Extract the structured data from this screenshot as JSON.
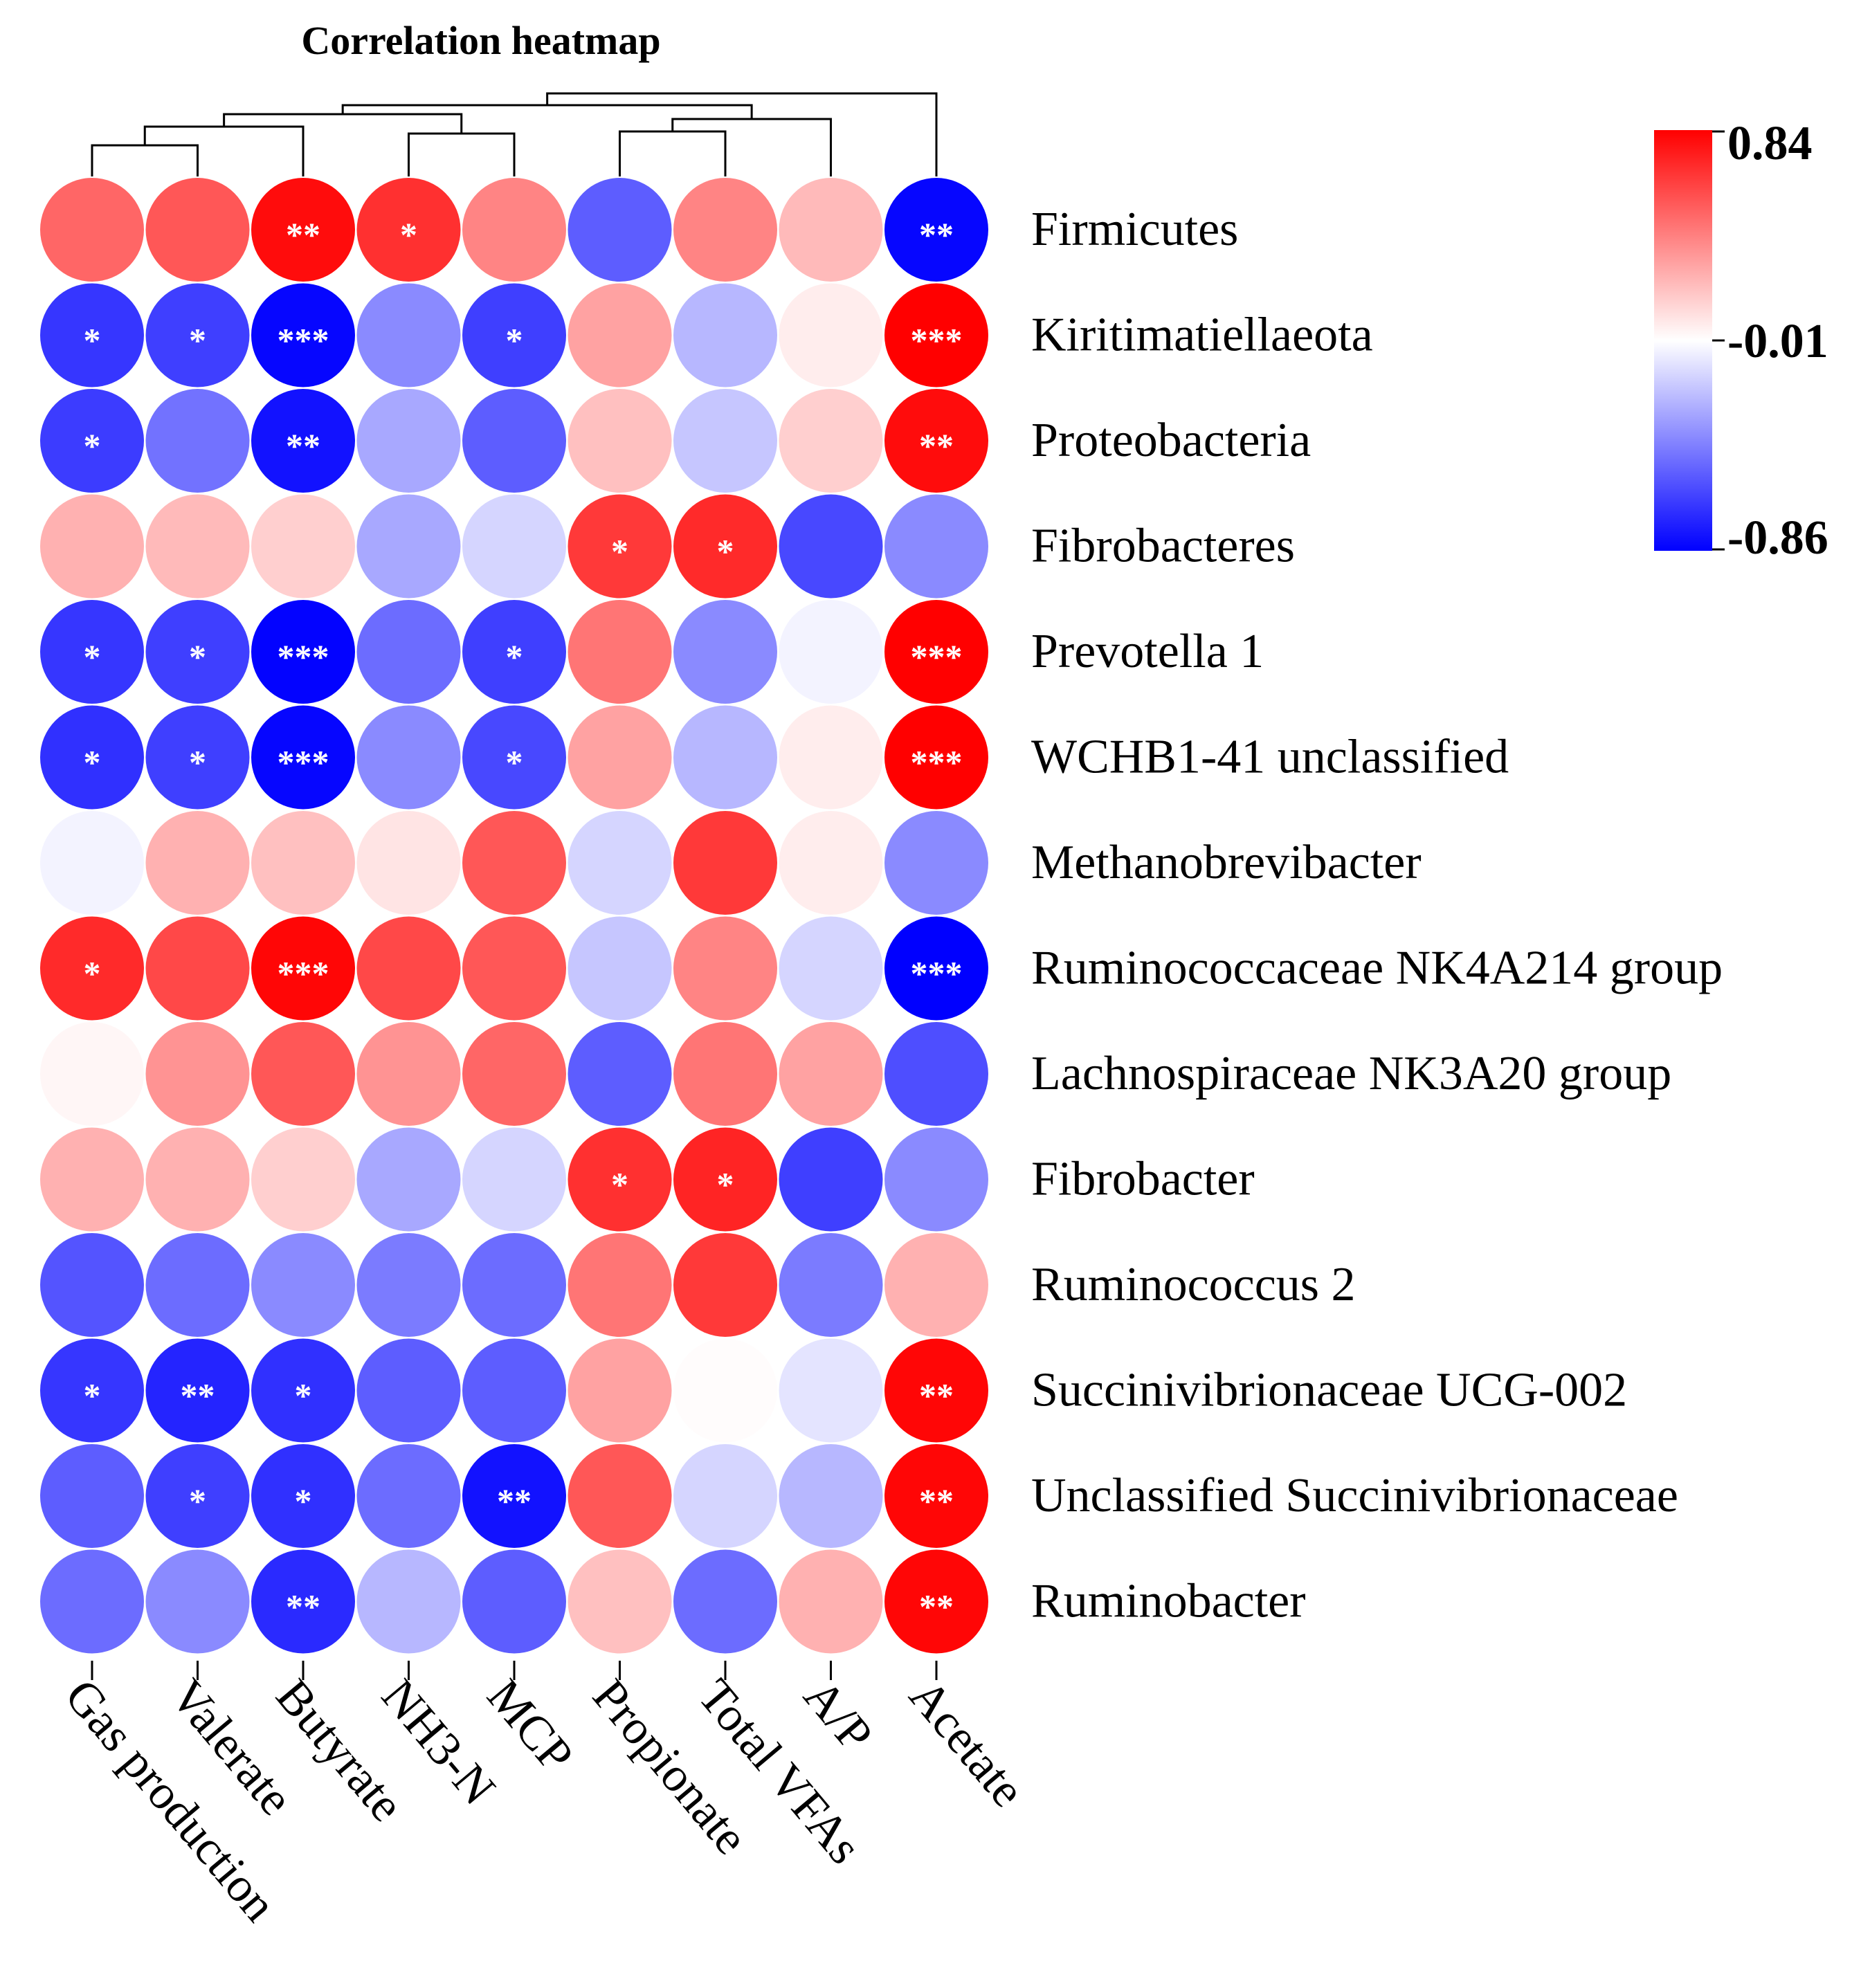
{
  "chart_data": {
    "type": "heatmap",
    "title": "Correlation heatmap",
    "columns": [
      "Gas production",
      "Valerate",
      "Butyrate",
      "NH3-N",
      "MCP",
      "Propionate",
      "Total VFAs",
      "A/P",
      "Acetate"
    ],
    "rows": [
      "Firmicutes",
      "Kiritimatiellaeota",
      "Proteobacteria",
      "Fibrobacteres",
      "Prevotella 1",
      "WCHB1-41 unclassified",
      "Methanobrevibacter",
      "Ruminococcaceae NK4A214 group",
      "Lachnospiraceae NK3A20 group",
      "Fibrobacter",
      "Ruminococcus 2",
      "Succinivibrionaceae UCG-002",
      "Unclassified Succinivibrionaceae",
      "Ruminobacter"
    ],
    "values": [
      [
        0.5,
        0.55,
        0.8,
        0.68,
        0.4,
        -0.55,
        0.4,
        0.22,
        -0.84
      ],
      [
        -0.68,
        -0.65,
        -0.84,
        -0.4,
        -0.65,
        0.3,
        -0.25,
        0.05,
        0.84
      ],
      [
        -0.66,
        -0.48,
        -0.8,
        -0.3,
        -0.55,
        0.2,
        -0.2,
        0.15,
        0.8
      ],
      [
        0.25,
        0.22,
        0.15,
        -0.3,
        -0.15,
        0.65,
        0.7,
        -0.62,
        -0.4
      ],
      [
        -0.68,
        -0.65,
        -0.85,
        -0.5,
        -0.65,
        0.45,
        -0.4,
        -0.05,
        0.84
      ],
      [
        -0.7,
        -0.65,
        -0.84,
        -0.4,
        -0.62,
        0.3,
        -0.25,
        0.05,
        0.84
      ],
      [
        -0.05,
        0.25,
        0.2,
        0.08,
        0.55,
        -0.15,
        0.65,
        0.05,
        -0.4
      ],
      [
        0.7,
        0.6,
        0.82,
        0.6,
        0.55,
        -0.2,
        0.4,
        -0.15,
        -0.86
      ],
      [
        0.02,
        0.35,
        0.55,
        0.35,
        0.5,
        -0.55,
        0.45,
        0.3,
        -0.6
      ],
      [
        0.25,
        0.25,
        0.15,
        -0.3,
        -0.15,
        0.68,
        0.72,
        -0.65,
        -0.4
      ],
      [
        -0.58,
        -0.5,
        -0.4,
        -0.45,
        -0.5,
        0.45,
        0.65,
        -0.45,
        0.25
      ],
      [
        -0.68,
        -0.74,
        -0.7,
        -0.55,
        -0.55,
        0.3,
        0.0,
        -0.1,
        0.82
      ],
      [
        -0.55,
        -0.65,
        -0.7,
        -0.5,
        -0.8,
        0.55,
        -0.15,
        -0.25,
        0.82
      ],
      [
        -0.5,
        -0.4,
        -0.72,
        -0.25,
        -0.55,
        0.2,
        -0.5,
        0.25,
        0.82
      ]
    ],
    "significance": [
      [
        "",
        "",
        "**",
        "*",
        "",
        "",
        "",
        "",
        "**"
      ],
      [
        "*",
        "*",
        "***",
        "",
        "*",
        "",
        "",
        "",
        "***"
      ],
      [
        "*",
        "",
        "**",
        "",
        "",
        "",
        "",
        "",
        "**"
      ],
      [
        "",
        "",
        "",
        "",
        "",
        "*",
        "*",
        "",
        ""
      ],
      [
        "*",
        "*",
        "***",
        "",
        "*",
        "",
        "",
        "",
        "***"
      ],
      [
        "*",
        "*",
        "***",
        "",
        "*",
        "",
        "",
        "",
        "***"
      ],
      [
        "",
        "",
        "",
        "",
        "",
        "",
        "",
        "",
        ""
      ],
      [
        "*",
        "",
        "***",
        "",
        "",
        "",
        "",
        "",
        "***"
      ],
      [
        "",
        "",
        "",
        "",
        "",
        "",
        "",
        "",
        ""
      ],
      [
        "",
        "",
        "",
        "",
        "",
        "*",
        "*",
        "",
        ""
      ],
      [
        "",
        "",
        "",
        "",
        "",
        "",
        "",
        "",
        ""
      ],
      [
        "*",
        "**",
        "*",
        "",
        "",
        "",
        "",
        "",
        "**"
      ],
      [
        "",
        "*",
        "*",
        "",
        "**",
        "",
        "",
        "",
        "**"
      ],
      [
        "",
        "",
        "**",
        "",
        "",
        "",
        "",
        "",
        "**"
      ]
    ],
    "color_scale": {
      "min": -0.86,
      "mid": -0.01,
      "max": 0.84,
      "min_label": "-0.86",
      "mid_label": "-0.01",
      "max_label": "0.84",
      "low_color": "#0000ff",
      "mid_color": "#ffffff",
      "high_color": "#ff0000"
    },
    "column_dendrogram": true
  }
}
